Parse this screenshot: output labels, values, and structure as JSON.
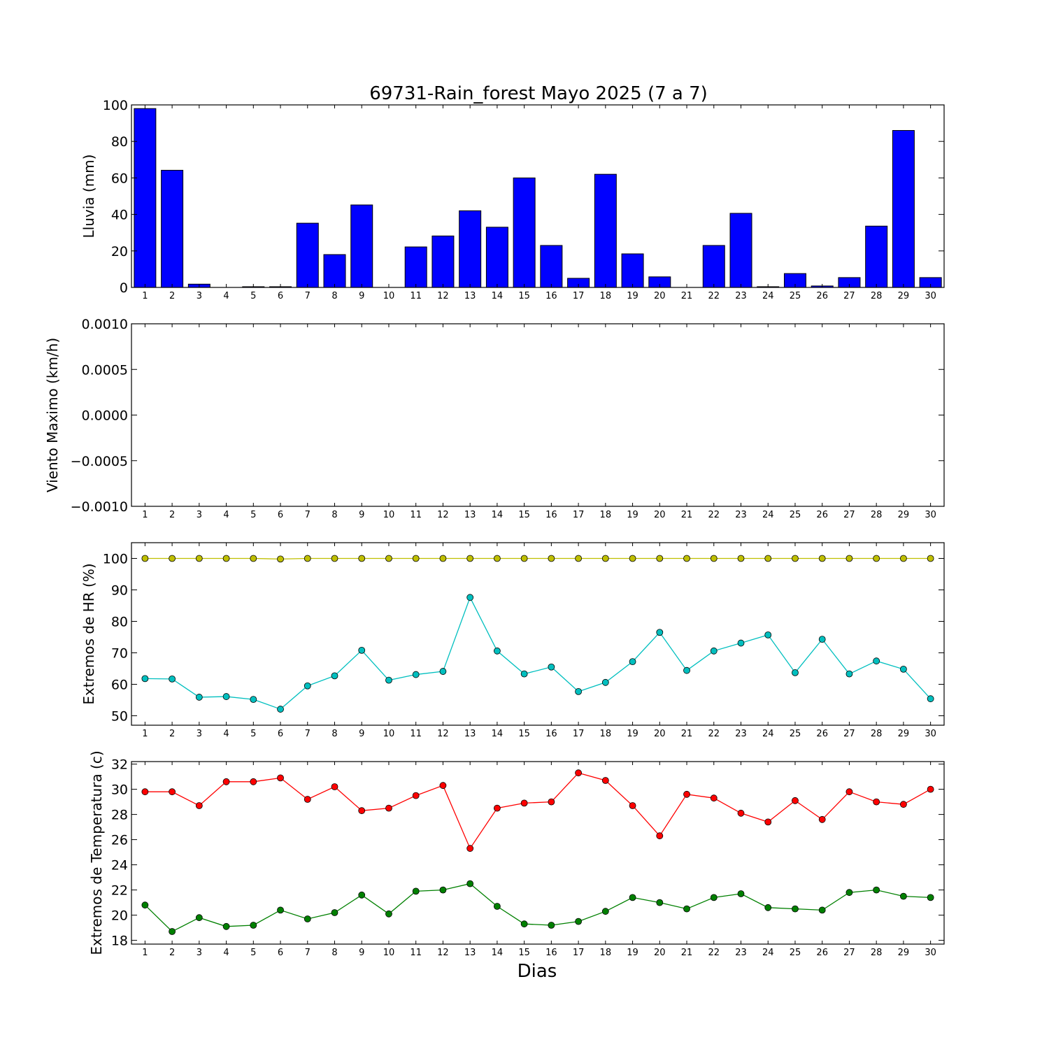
{
  "title": "69731-Rain_forest Mayo 2025  (7 a 7)",
  "xlabel": "Dias",
  "colors": {
    "rain_bar": "#0000ff",
    "hr_max": "#bfbf00",
    "hr_min": "#00bfbf",
    "temp_max": "#ff0000",
    "temp_min": "#008000"
  },
  "chart_data": [
    {
      "type": "bar",
      "ylabel": "Lluvia (mm)",
      "ylim": [
        0,
        100
      ],
      "yticks": [
        0,
        20,
        40,
        60,
        80,
        100
      ],
      "ytick_labels": [
        "0",
        "20",
        "40",
        "60",
        "80",
        "100"
      ],
      "categories": [
        "1",
        "2",
        "3",
        "4",
        "5",
        "6",
        "7",
        "8",
        "9",
        "10",
        "11",
        "12",
        "13",
        "14",
        "15",
        "16",
        "17",
        "18",
        "19",
        "20",
        "21",
        "22",
        "23",
        "24",
        "25",
        "26",
        "27",
        "28",
        "29",
        "30"
      ],
      "series": [
        {
          "values": [
            98,
            64.2,
            1.8,
            0,
            0.4,
            0.4,
            35.2,
            18,
            45.2,
            0,
            22.2,
            28.2,
            42,
            33,
            60,
            23,
            5,
            62,
            18.4,
            5.8,
            0,
            23,
            40.6,
            0.4,
            7.6,
            0.8,
            5.4,
            33.6,
            86,
            5.4
          ]
        }
      ],
      "grid": false
    },
    {
      "type": "line",
      "ylabel": "Viento Maximo (km/h)",
      "ylim": [
        -0.001,
        0.001
      ],
      "yticks": [
        -0.001,
        -0.0005,
        0,
        0.0005,
        0.001
      ],
      "ytick_labels": [
        "−0.0010",
        "−0.0005",
        "0.0000",
        "0.0005",
        "0.0010"
      ],
      "categories": [
        "1",
        "2",
        "3",
        "4",
        "5",
        "6",
        "7",
        "8",
        "9",
        "10",
        "11",
        "12",
        "13",
        "14",
        "15",
        "16",
        "17",
        "18",
        "19",
        "20",
        "21",
        "22",
        "23",
        "24",
        "25",
        "26",
        "27",
        "28",
        "29",
        "30"
      ],
      "series": [],
      "grid": false
    },
    {
      "type": "line",
      "ylabel": "Extremos de HR (%)",
      "ylim": [
        47,
        105
      ],
      "yticks": [
        50,
        60,
        70,
        80,
        90,
        100
      ],
      "ytick_labels": [
        "50",
        "60",
        "70",
        "80",
        "90",
        "100"
      ],
      "categories": [
        "1",
        "2",
        "3",
        "4",
        "5",
        "6",
        "7",
        "8",
        "9",
        "10",
        "11",
        "12",
        "13",
        "14",
        "15",
        "16",
        "17",
        "18",
        "19",
        "20",
        "21",
        "22",
        "23",
        "24",
        "25",
        "26",
        "27",
        "28",
        "29",
        "30"
      ],
      "series": [
        {
          "values": [
            100,
            100,
            100,
            100,
            100,
            99.8,
            100,
            100,
            100,
            100,
            100,
            100,
            100,
            100,
            100,
            100,
            100,
            100,
            100,
            100,
            100,
            100,
            100,
            100,
            100,
            100,
            100,
            100,
            100,
            100
          ]
        },
        {
          "values": [
            61.8,
            61.7,
            55.9,
            56.1,
            55.2,
            52.1,
            59.5,
            62.7,
            70.8,
            61.3,
            63.1,
            64.1,
            87.6,
            70.6,
            63.3,
            65.5,
            57.7,
            60.6,
            67.2,
            76.5,
            64.4,
            70.6,
            73.1,
            75.7,
            63.7,
            74.3,
            63.3,
            67.4,
            64.8,
            55.4
          ]
        }
      ],
      "grid": false
    },
    {
      "type": "line",
      "ylabel": "Extremos de Temperatura (c)",
      "ylim": [
        17.7,
        32.2
      ],
      "yticks": [
        18,
        20,
        22,
        24,
        26,
        28,
        30,
        32
      ],
      "ytick_labels": [
        "18",
        "20",
        "22",
        "24",
        "26",
        "28",
        "30",
        "32"
      ],
      "categories": [
        "1",
        "2",
        "3",
        "4",
        "5",
        "6",
        "7",
        "8",
        "9",
        "10",
        "11",
        "12",
        "13",
        "14",
        "15",
        "16",
        "17",
        "18",
        "19",
        "20",
        "21",
        "22",
        "23",
        "24",
        "25",
        "26",
        "27",
        "28",
        "29",
        "30"
      ],
      "series": [
        {
          "values": [
            29.8,
            29.8,
            28.7,
            30.6,
            30.6,
            30.9,
            29.2,
            30.2,
            28.3,
            28.5,
            29.5,
            30.3,
            25.3,
            28.5,
            28.9,
            29.0,
            31.3,
            30.7,
            28.7,
            26.3,
            29.6,
            29.3,
            28.1,
            27.4,
            29.1,
            27.6,
            29.8,
            29.0,
            28.8,
            30.0
          ]
        },
        {
          "values": [
            20.8,
            18.7,
            19.8,
            19.1,
            19.2,
            20.4,
            19.7,
            20.2,
            21.6,
            20.1,
            21.9,
            22.0,
            22.5,
            20.7,
            19.3,
            19.2,
            19.5,
            20.3,
            21.4,
            21.0,
            20.5,
            21.4,
            21.7,
            20.6,
            20.5,
            20.4,
            21.8,
            22.0,
            21.5,
            21.4
          ]
        }
      ],
      "grid": false
    }
  ]
}
